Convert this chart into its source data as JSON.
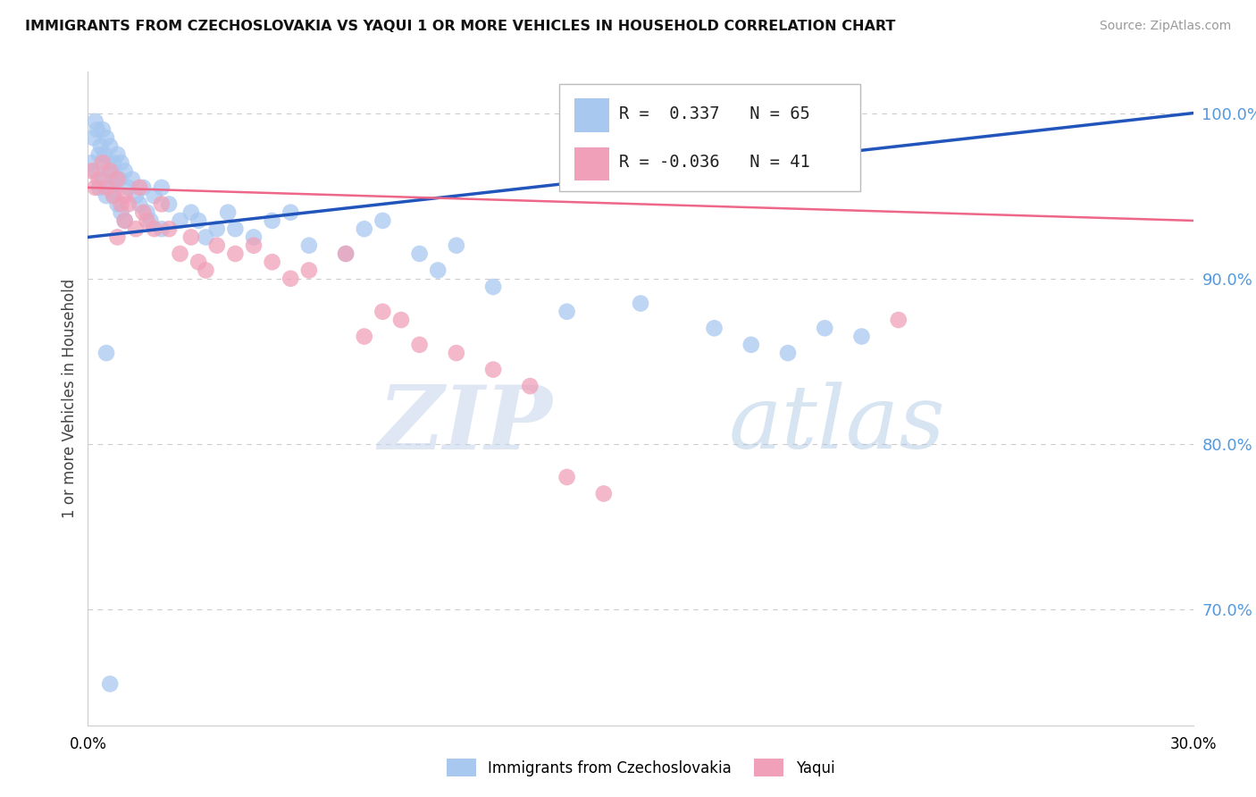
{
  "title": "IMMIGRANTS FROM CZECHOSLOVAKIA VS YAQUI 1 OR MORE VEHICLES IN HOUSEHOLD CORRELATION CHART",
  "source": "Source: ZipAtlas.com",
  "ylabel": "1 or more Vehicles in Household",
  "legend_label1": "Immigrants from Czechoslovakia",
  "legend_label2": "Yaqui",
  "R1": 0.337,
  "N1": 65,
  "R2": -0.036,
  "N2": 41,
  "watermark_zip": "ZIP",
  "watermark_atlas": "atlas",
  "blue_color": "#a8c8f0",
  "pink_color": "#f0a0b8",
  "blue_line_color": "#2255bb",
  "pink_line_color": "#ee6688",
  "xmin": 0.0,
  "xmax": 30.0,
  "ymin": 63.0,
  "ymax": 102.5,
  "yticks": [
    70,
    80,
    90,
    100
  ],
  "blue_x": [
    0.1,
    0.15,
    0.2,
    0.2,
    0.25,
    0.3,
    0.3,
    0.35,
    0.4,
    0.4,
    0.45,
    0.5,
    0.5,
    0.55,
    0.6,
    0.6,
    0.65,
    0.7,
    0.7,
    0.75,
    0.8,
    0.8,
    0.85,
    0.9,
    0.9,
    1.0,
    1.0,
    1.1,
    1.2,
    1.3,
    1.4,
    1.5,
    1.6,
    1.7,
    1.8,
    2.0,
    2.0,
    2.2,
    2.5,
    2.8,
    3.0,
    3.2,
    3.5,
    3.8,
    4.0,
    4.5,
    5.0,
    5.5,
    6.0,
    7.0,
    7.5,
    8.0,
    9.0,
    9.5,
    10.0,
    11.0,
    13.0,
    15.0,
    17.0,
    18.0,
    19.0,
    20.0,
    21.0,
    0.5,
    0.6
  ],
  "blue_y": [
    97.0,
    98.5,
    99.5,
    96.5,
    99.0,
    97.5,
    95.5,
    98.0,
    99.0,
    96.0,
    97.5,
    98.5,
    95.0,
    97.0,
    98.0,
    95.5,
    96.5,
    97.0,
    95.0,
    96.0,
    97.5,
    94.5,
    96.0,
    97.0,
    94.0,
    96.5,
    93.5,
    95.5,
    96.0,
    95.0,
    94.5,
    95.5,
    94.0,
    93.5,
    95.0,
    95.5,
    93.0,
    94.5,
    93.5,
    94.0,
    93.5,
    92.5,
    93.0,
    94.0,
    93.0,
    92.5,
    93.5,
    94.0,
    92.0,
    91.5,
    93.0,
    93.5,
    91.5,
    90.5,
    92.0,
    89.5,
    88.0,
    88.5,
    87.0,
    86.0,
    85.5,
    87.0,
    86.5,
    85.5,
    65.5
  ],
  "pink_x": [
    0.1,
    0.2,
    0.3,
    0.4,
    0.5,
    0.6,
    0.7,
    0.8,
    0.9,
    1.0,
    1.0,
    1.1,
    1.3,
    1.4,
    1.5,
    1.6,
    1.8,
    2.0,
    2.2,
    2.5,
    2.8,
    3.0,
    3.2,
    3.5,
    4.0,
    4.5,
    5.0,
    5.5,
    6.0,
    7.0,
    7.5,
    8.0,
    8.5,
    9.0,
    10.0,
    11.0,
    12.0,
    13.0,
    14.0,
    22.0,
    0.8
  ],
  "pink_y": [
    96.5,
    95.5,
    96.0,
    97.0,
    95.5,
    96.5,
    95.0,
    96.0,
    94.5,
    95.0,
    93.5,
    94.5,
    93.0,
    95.5,
    94.0,
    93.5,
    93.0,
    94.5,
    93.0,
    91.5,
    92.5,
    91.0,
    90.5,
    92.0,
    91.5,
    92.0,
    91.0,
    90.0,
    90.5,
    91.5,
    86.5,
    88.0,
    87.5,
    86.0,
    85.5,
    84.5,
    83.5,
    78.0,
    77.0,
    87.5,
    92.5
  ],
  "blue_trend_x": [
    0.0,
    30.0
  ],
  "blue_trend_y": [
    92.5,
    100.0
  ],
  "pink_trend_x": [
    0.0,
    30.0
  ],
  "pink_trend_y": [
    95.5,
    93.5
  ]
}
